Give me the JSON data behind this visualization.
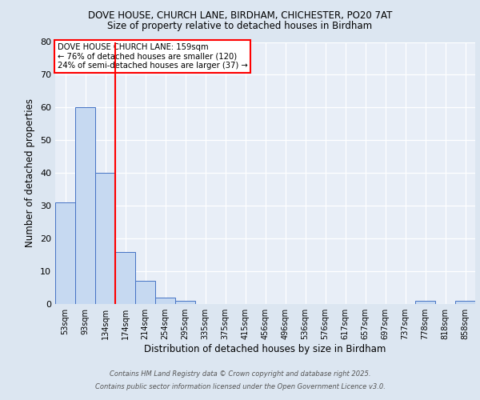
{
  "title_line1": "DOVE HOUSE, CHURCH LANE, BIRDHAM, CHICHESTER, PO20 7AT",
  "title_line2": "Size of property relative to detached houses in Birdham",
  "xlabel": "Distribution of detached houses by size in Birdham",
  "ylabel": "Number of detached properties",
  "categories": [
    "53sqm",
    "93sqm",
    "134sqm",
    "174sqm",
    "214sqm",
    "254sqm",
    "295sqm",
    "335sqm",
    "375sqm",
    "415sqm",
    "456sqm",
    "496sqm",
    "536sqm",
    "576sqm",
    "617sqm",
    "657sqm",
    "697sqm",
    "737sqm",
    "778sqm",
    "818sqm",
    "858sqm"
  ],
  "values": [
    31,
    60,
    40,
    16,
    7,
    2,
    1,
    0,
    0,
    0,
    0,
    0,
    0,
    0,
    0,
    0,
    0,
    0,
    1,
    0,
    1
  ],
  "bar_color": "#c6d9f1",
  "bar_edge_color": "#4472c4",
  "vline_color": "#ff0000",
  "annotation_text": "DOVE HOUSE CHURCH LANE: 159sqm\n← 76% of detached houses are smaller (120)\n24% of semi-detached houses are larger (37) →",
  "annotation_box_color": "#ffffff",
  "annotation_box_edge": "#ff0000",
  "ylim": [
    0,
    80
  ],
  "yticks": [
    0,
    10,
    20,
    30,
    40,
    50,
    60,
    70,
    80
  ],
  "footer_line1": "Contains HM Land Registry data © Crown copyright and database right 2025.",
  "footer_line2": "Contains public sector information licensed under the Open Government Licence v3.0.",
  "bg_color": "#dce6f1",
  "plot_bg_color": "#e8eef7"
}
